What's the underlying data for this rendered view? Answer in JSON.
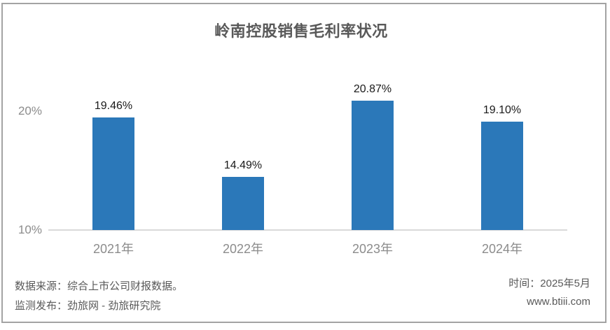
{
  "chart_data": {
    "type": "bar",
    "title": "岭南控股销售毛利率状况",
    "categories": [
      "2021年",
      "2022年",
      "2023年",
      "2024年"
    ],
    "values": [
      19.46,
      14.49,
      20.87,
      19.1
    ],
    "value_labels": [
      "19.46%",
      "14.49%",
      "20.87%",
      "19.10%"
    ],
    "xlabel": "",
    "ylabel": "",
    "ylim": [
      10,
      24
    ],
    "yticks": [
      {
        "value": 10,
        "label": "10%"
      },
      {
        "value": 20,
        "label": "20%"
      }
    ],
    "grid": false,
    "legend": "none",
    "bar_color": "#2b78b9",
    "axis_line_color": "#d9d9d9"
  },
  "footer": {
    "source_line": "数据来源：综合上市公司财报数据。",
    "publisher_line": "监测发布：劲旅网 - 劲旅研究院",
    "time_line": "时间：2025年5月",
    "website": "www.btiii.com"
  }
}
